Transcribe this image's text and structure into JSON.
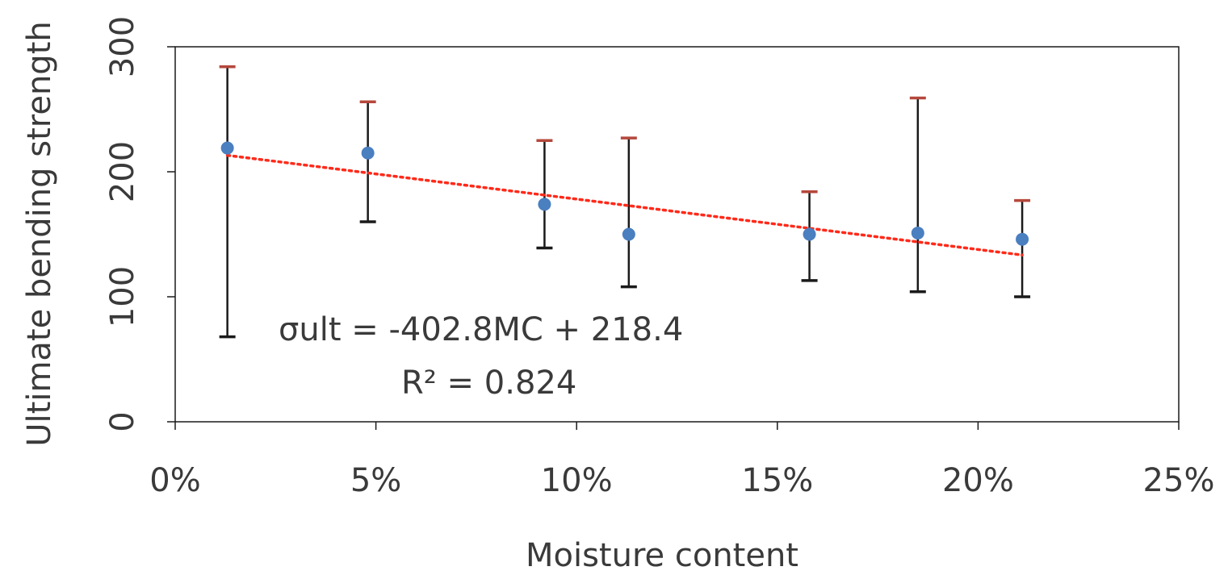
{
  "chart_data": {
    "type": "scatter",
    "title": "",
    "xlabel": "Moisture content",
    "ylabel": "Ultimate bending strength",
    "xlim": [
      0,
      0.25
    ],
    "ylim": [
      0,
      300
    ],
    "x_ticks": [
      {
        "value": 0,
        "label": "0%"
      },
      {
        "value": 0.05,
        "label": "5%"
      },
      {
        "value": 0.1,
        "label": "10%"
      },
      {
        "value": 0.15,
        "label": "15%"
      },
      {
        "value": 0.2,
        "label": "20%"
      },
      {
        "value": 0.25,
        "label": "25%"
      }
    ],
    "y_ticks": [
      {
        "value": 0,
        "label": "0"
      },
      {
        "value": 100,
        "label": "100"
      },
      {
        "value": 200,
        "label": "200"
      },
      {
        "value": 300,
        "label": "300"
      }
    ],
    "grid": false,
    "legend": "none",
    "series": [
      {
        "points": [
          {
            "x": 0.013,
            "y": 219,
            "y_low": 68,
            "y_high": 284
          },
          {
            "x": 0.048,
            "y": 215,
            "y_low": 160,
            "y_high": 256
          },
          {
            "x": 0.092,
            "y": 174,
            "y_low": 139,
            "y_high": 225
          },
          {
            "x": 0.113,
            "y": 150,
            "y_low": 108,
            "y_high": 227
          },
          {
            "x": 0.158,
            "y": 150,
            "y_low": 113,
            "y_high": 184
          },
          {
            "x": 0.185,
            "y": 151,
            "y_low": 104,
            "y_high": 259
          },
          {
            "x": 0.211,
            "y": 146,
            "y_low": 100,
            "y_high": 177
          }
        ]
      }
    ],
    "trendline": {
      "type": "linear",
      "slope": -402.8,
      "intercept": 218.4,
      "x_range": [
        0.013,
        0.211
      ],
      "equation_label": "σult = -402.8MC + 218.4",
      "r2_label": "R² = 0.824"
    },
    "colors": {
      "marker": "#4a7fc0",
      "trendline": "#ff2a1a",
      "error_bar": "#1a1a1a",
      "error_cap_upper": "#b5483c",
      "axis": "#1a1a1a"
    }
  }
}
